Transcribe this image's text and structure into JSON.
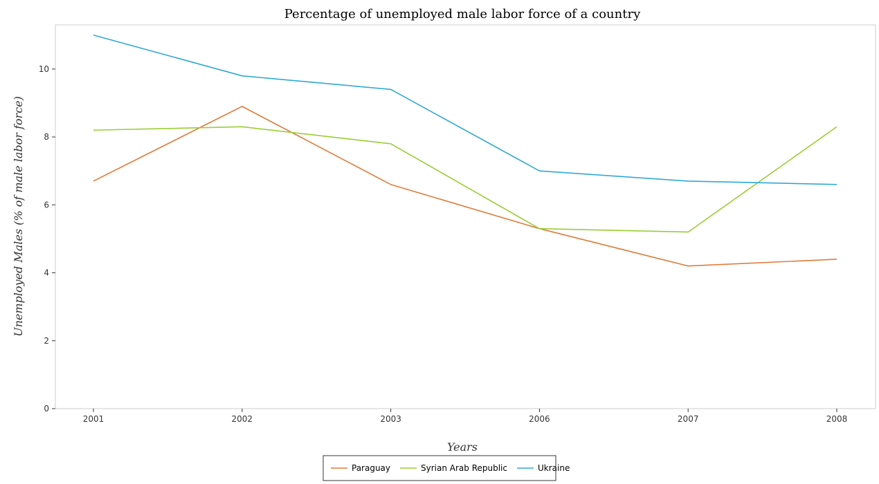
{
  "chart_data": {
    "type": "line",
    "title": "Percentage of unemployed male labor force of a country",
    "xlabel": "Years",
    "ylabel": "Unemployed Males (% of male labor force)",
    "categories": [
      "2001",
      "2002",
      "2003",
      "2006",
      "2007",
      "2008"
    ],
    "ylim": [
      0,
      11.3
    ],
    "yticks": [
      0,
      2,
      4,
      6,
      8,
      10
    ],
    "grid": false,
    "legend_position": "bottom-center",
    "series": [
      {
        "name": "Paraguay",
        "color": "#e07b39",
        "values": [
          6.7,
          8.9,
          6.6,
          5.3,
          4.2,
          4.4
        ]
      },
      {
        "name": "Syrian Arab Republic",
        "color": "#9acd32",
        "values": [
          8.2,
          8.3,
          7.8,
          5.3,
          5.2,
          8.3
        ]
      },
      {
        "name": "Ukraine",
        "color": "#2ea8d5",
        "values": [
          11.0,
          9.8,
          9.4,
          7.0,
          6.7,
          6.6
        ]
      }
    ]
  }
}
